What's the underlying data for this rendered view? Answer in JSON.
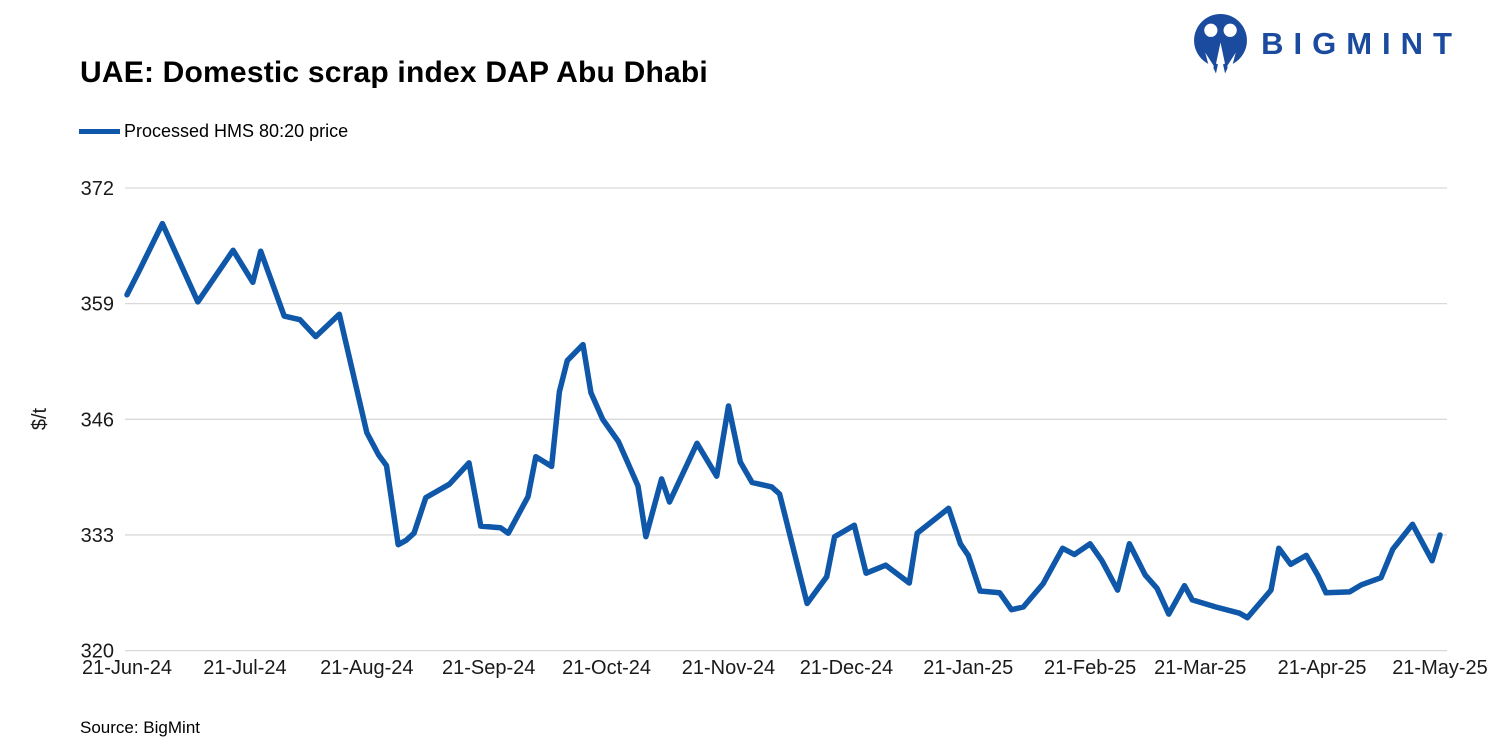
{
  "header": {
    "title": "UAE: Domestic scrap index DAP Abu Dhabi",
    "brand": {
      "name": "BIGMINT",
      "color": "#1b4b9e",
      "icon": "bigmint-people-logo"
    }
  },
  "legend": {
    "label": "Processed HMS 80:20 price",
    "swatch_color": "#0f57a8"
  },
  "footer": {
    "source": "Source: BigMint"
  },
  "chart_data": {
    "type": "line",
    "title": "UAE: Domestic scrap index DAP Abu Dhabi",
    "ylabel": "$/t",
    "ylim": [
      320,
      372
    ],
    "yticks": [
      320,
      333,
      346,
      359,
      372
    ],
    "grid": "horizontal-only",
    "gridline_color": "#d9d9d9",
    "legend_position": "top-left",
    "xticks": [
      {
        "label": "21-Jun-24",
        "t": 0
      },
      {
        "label": "21-Jul-24",
        "t": 30
      },
      {
        "label": "21-Aug-24",
        "t": 61
      },
      {
        "label": "21-Sep-24",
        "t": 92
      },
      {
        "label": "21-Oct-24",
        "t": 122
      },
      {
        "label": "21-Nov-24",
        "t": 153
      },
      {
        "label": "21-Dec-24",
        "t": 183
      },
      {
        "label": "21-Jan-25",
        "t": 214
      },
      {
        "label": "21-Feb-25",
        "t": 245
      },
      {
        "label": "21-Mar-25",
        "t": 273
      },
      {
        "label": "21-Apr-25",
        "t": 304
      },
      {
        "label": "21-May-25",
        "t": 334
      }
    ],
    "x_domain_days": 334,
    "series": [
      {
        "name": "Processed HMS 80:20 price",
        "color": "#0f57a8",
        "points": [
          {
            "d": "21-Jun-24",
            "t": 0,
            "v": 360.0
          },
          {
            "d": "24-Jun-24",
            "t": 3,
            "v": 362.6
          },
          {
            "d": "30-Jun-24",
            "t": 9,
            "v": 368.0
          },
          {
            "d": "9-Jul-24",
            "t": 18,
            "v": 359.2
          },
          {
            "d": "18-Jul-24",
            "t": 27,
            "v": 365.0
          },
          {
            "d": "23-Jul-24",
            "t": 32,
            "v": 361.4
          },
          {
            "d": "25-Jul-24",
            "t": 34,
            "v": 364.9
          },
          {
            "d": "31-Jul-24",
            "t": 40,
            "v": 357.6
          },
          {
            "d": "4-Aug-24",
            "t": 44,
            "v": 357.2
          },
          {
            "d": "8-Aug-24",
            "t": 48,
            "v": 355.3
          },
          {
            "d": "14-Aug-24",
            "t": 54,
            "v": 357.8
          },
          {
            "d": "21-Aug-24",
            "t": 61,
            "v": 344.5
          },
          {
            "d": "24-Aug-24",
            "t": 64,
            "v": 342.0
          },
          {
            "d": "26-Aug-24",
            "t": 66,
            "v": 340.8
          },
          {
            "d": "29-Aug-24",
            "t": 69,
            "v": 331.9
          },
          {
            "d": "31-Aug-24",
            "t": 71,
            "v": 332.4
          },
          {
            "d": "2-Sep-24",
            "t": 73,
            "v": 333.2
          },
          {
            "d": "5-Sep-24",
            "t": 76,
            "v": 337.2
          },
          {
            "d": "11-Sep-24",
            "t": 82,
            "v": 338.7
          },
          {
            "d": "16-Sep-24",
            "t": 87,
            "v": 341.1
          },
          {
            "d": "19-Sep-24",
            "t": 90,
            "v": 334.0
          },
          {
            "d": "24-Sep-24",
            "t": 95,
            "v": 333.8
          },
          {
            "d": "26-Sep-24",
            "t": 97,
            "v": 333.2
          },
          {
            "d": "1-Oct-24",
            "t": 102,
            "v": 337.3
          },
          {
            "d": "3-Oct-24",
            "t": 104,
            "v": 341.8
          },
          {
            "d": "7-Oct-24",
            "t": 108,
            "v": 340.7
          },
          {
            "d": "9-Oct-24",
            "t": 110,
            "v": 349.1
          },
          {
            "d": "11-Oct-24",
            "t": 112,
            "v": 352.6
          },
          {
            "d": "15-Oct-24",
            "t": 116,
            "v": 354.4
          },
          {
            "d": "17-Oct-24",
            "t": 118,
            "v": 349.0
          },
          {
            "d": "20-Oct-24",
            "t": 121,
            "v": 346.0
          },
          {
            "d": "24-Oct-24",
            "t": 125,
            "v": 343.5
          },
          {
            "d": "27-Oct-24",
            "t": 128,
            "v": 340.5
          },
          {
            "d": "29-Oct-24",
            "t": 130,
            "v": 338.5
          },
          {
            "d": "31-Oct-24",
            "t": 132,
            "v": 332.8
          },
          {
            "d": "4-Nov-24",
            "t": 136,
            "v": 339.3
          },
          {
            "d": "6-Nov-24",
            "t": 138,
            "v": 336.7
          },
          {
            "d": "13-Nov-24",
            "t": 145,
            "v": 343.3
          },
          {
            "d": "18-Nov-24",
            "t": 150,
            "v": 339.6
          },
          {
            "d": "21-Nov-24",
            "t": 153,
            "v": 347.5
          },
          {
            "d": "24-Nov-24",
            "t": 156,
            "v": 341.2
          },
          {
            "d": "27-Nov-24",
            "t": 159,
            "v": 338.9
          },
          {
            "d": "2-Dec-24",
            "t": 164,
            "v": 338.4
          },
          {
            "d": "4-Dec-24",
            "t": 166,
            "v": 337.6
          },
          {
            "d": "11-Dec-24",
            "t": 173,
            "v": 325.3
          },
          {
            "d": "16-Dec-24",
            "t": 178,
            "v": 328.3
          },
          {
            "d": "18-Dec-24",
            "t": 180,
            "v": 332.8
          },
          {
            "d": "23-Dec-24",
            "t": 185,
            "v": 334.1
          },
          {
            "d": "26-Dec-24",
            "t": 188,
            "v": 328.7
          },
          {
            "d": "31-Dec-24",
            "t": 193,
            "v": 329.6
          },
          {
            "d": "6-Jan-25",
            "t": 199,
            "v": 327.6
          },
          {
            "d": "8-Jan-25",
            "t": 201,
            "v": 333.2
          },
          {
            "d": "16-Jan-25",
            "t": 209,
            "v": 336.0
          },
          {
            "d": "19-Jan-25",
            "t": 212,
            "v": 332.0
          },
          {
            "d": "21-Jan-25",
            "t": 214,
            "v": 330.7
          },
          {
            "d": "24-Jan-25",
            "t": 217,
            "v": 326.7
          },
          {
            "d": "29-Jan-25",
            "t": 222,
            "v": 326.5
          },
          {
            "d": "1-Feb-25",
            "t": 225,
            "v": 324.6
          },
          {
            "d": "4-Feb-25",
            "t": 228,
            "v": 324.9
          },
          {
            "d": "9-Feb-25",
            "t": 233,
            "v": 327.5
          },
          {
            "d": "14-Feb-25",
            "t": 238,
            "v": 331.5
          },
          {
            "d": "17-Feb-25",
            "t": 241,
            "v": 330.8
          },
          {
            "d": "21-Feb-25",
            "t": 245,
            "v": 332.0
          },
          {
            "d": "24-Feb-25",
            "t": 248,
            "v": 330.1
          },
          {
            "d": "28-Feb-25",
            "t": 252,
            "v": 326.8
          },
          {
            "d": "3-Mar-25",
            "t": 255,
            "v": 332.0
          },
          {
            "d": "7-Mar-25",
            "t": 259,
            "v": 328.5
          },
          {
            "d": "10-Mar-25",
            "t": 262,
            "v": 327.0
          },
          {
            "d": "13-Mar-25",
            "t": 265,
            "v": 324.1
          },
          {
            "d": "17-Mar-25",
            "t": 269,
            "v": 327.3
          },
          {
            "d": "19-Mar-25",
            "t": 271,
            "v": 325.7
          },
          {
            "d": "25-Mar-25",
            "t": 277,
            "v": 324.9
          },
          {
            "d": "31-Mar-25",
            "t": 283,
            "v": 324.2
          },
          {
            "d": "2-Apr-25",
            "t": 285,
            "v": 323.7
          },
          {
            "d": "8-Apr-25",
            "t": 291,
            "v": 326.8
          },
          {
            "d": "10-Apr-25",
            "t": 293,
            "v": 331.5
          },
          {
            "d": "13-Apr-25",
            "t": 296,
            "v": 329.7
          },
          {
            "d": "17-Apr-25",
            "t": 300,
            "v": 330.7
          },
          {
            "d": "20-Apr-25",
            "t": 303,
            "v": 328.4
          },
          {
            "d": "22-Apr-25",
            "t": 305,
            "v": 326.5
          },
          {
            "d": "28-Apr-25",
            "t": 311,
            "v": 326.6
          },
          {
            "d": "1-May-25",
            "t": 314,
            "v": 327.4
          },
          {
            "d": "6-May-25",
            "t": 319,
            "v": 328.2
          },
          {
            "d": "9-May-25",
            "t": 322,
            "v": 331.4
          },
          {
            "d": "14-May-25",
            "t": 327,
            "v": 334.2
          },
          {
            "d": "19-May-25",
            "t": 332,
            "v": 330.1
          },
          {
            "d": "21-May-25",
            "t": 334,
            "v": 333.0
          }
        ]
      }
    ]
  }
}
